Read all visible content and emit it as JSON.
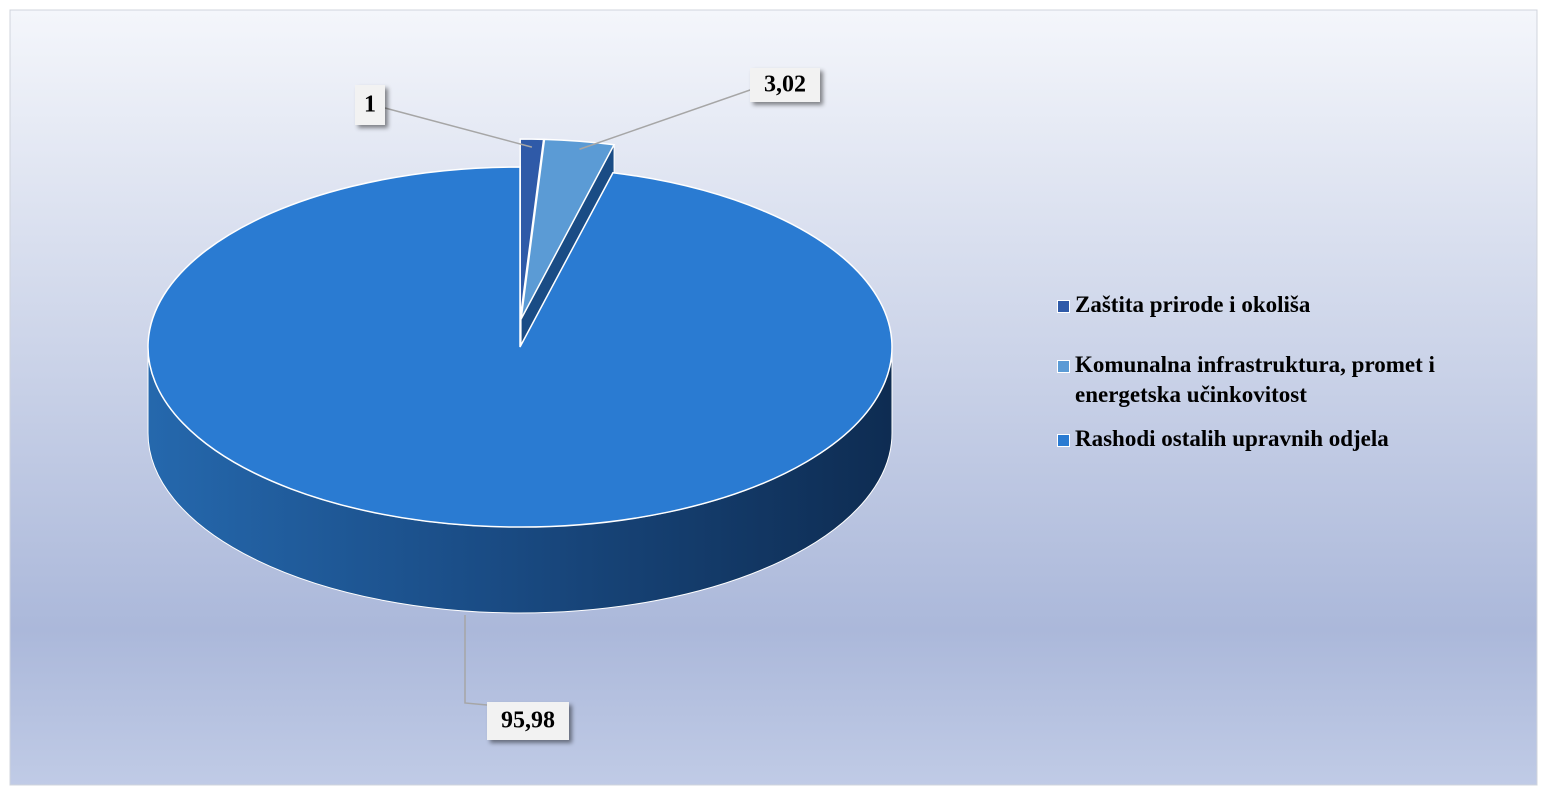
{
  "chart_data": {
    "type": "pie",
    "categories": [
      "Zaštita prirode i okoliša",
      "Komunalna infrastruktura, promet i energetska učinkovitost",
      "Rashodi ostalih upravnih odjela"
    ],
    "values": [
      1,
      3.02,
      95.98
    ],
    "value_labels": [
      "1",
      "3,02",
      "95,98"
    ],
    "colors": [
      "#2f5aa8",
      "#5b9bd5",
      "#2a7bd2"
    ],
    "legend": "right"
  }
}
